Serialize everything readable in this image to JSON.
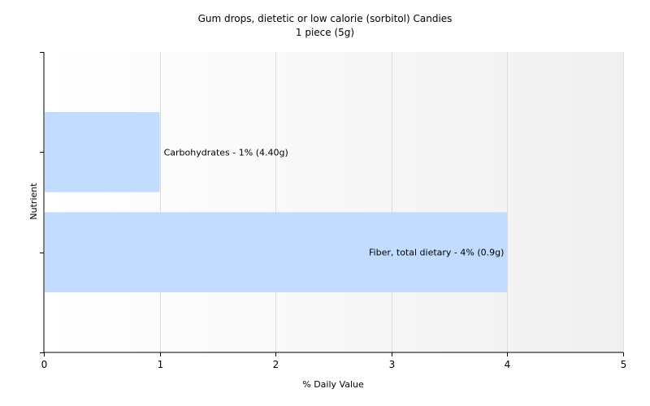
{
  "chart_data": {
    "type": "bar",
    "orientation": "horizontal",
    "title": "Gum drops, dietetic or low calorie (sorbitol) Candies",
    "subtitle": "1 piece (5g)",
    "xlabel": "% Daily Value",
    "ylabel": "Nutrient",
    "xlim": [
      0,
      5
    ],
    "x_ticks": [
      "0",
      "1",
      "2",
      "3",
      "4",
      "5"
    ],
    "grid": true,
    "legend": "none",
    "categories": [
      "Carbohydrates",
      "Fiber, total dietary"
    ],
    "values": [
      1,
      4
    ],
    "data_labels": [
      "Carbohydrates - 1% (4.40g)",
      "Fiber, total dietary - 4% (0.9g)"
    ]
  },
  "colors": {
    "bar": "#c2dcff",
    "plot_background": "#f6f6f6",
    "grid": "#dddddd",
    "axis": "#000000"
  }
}
